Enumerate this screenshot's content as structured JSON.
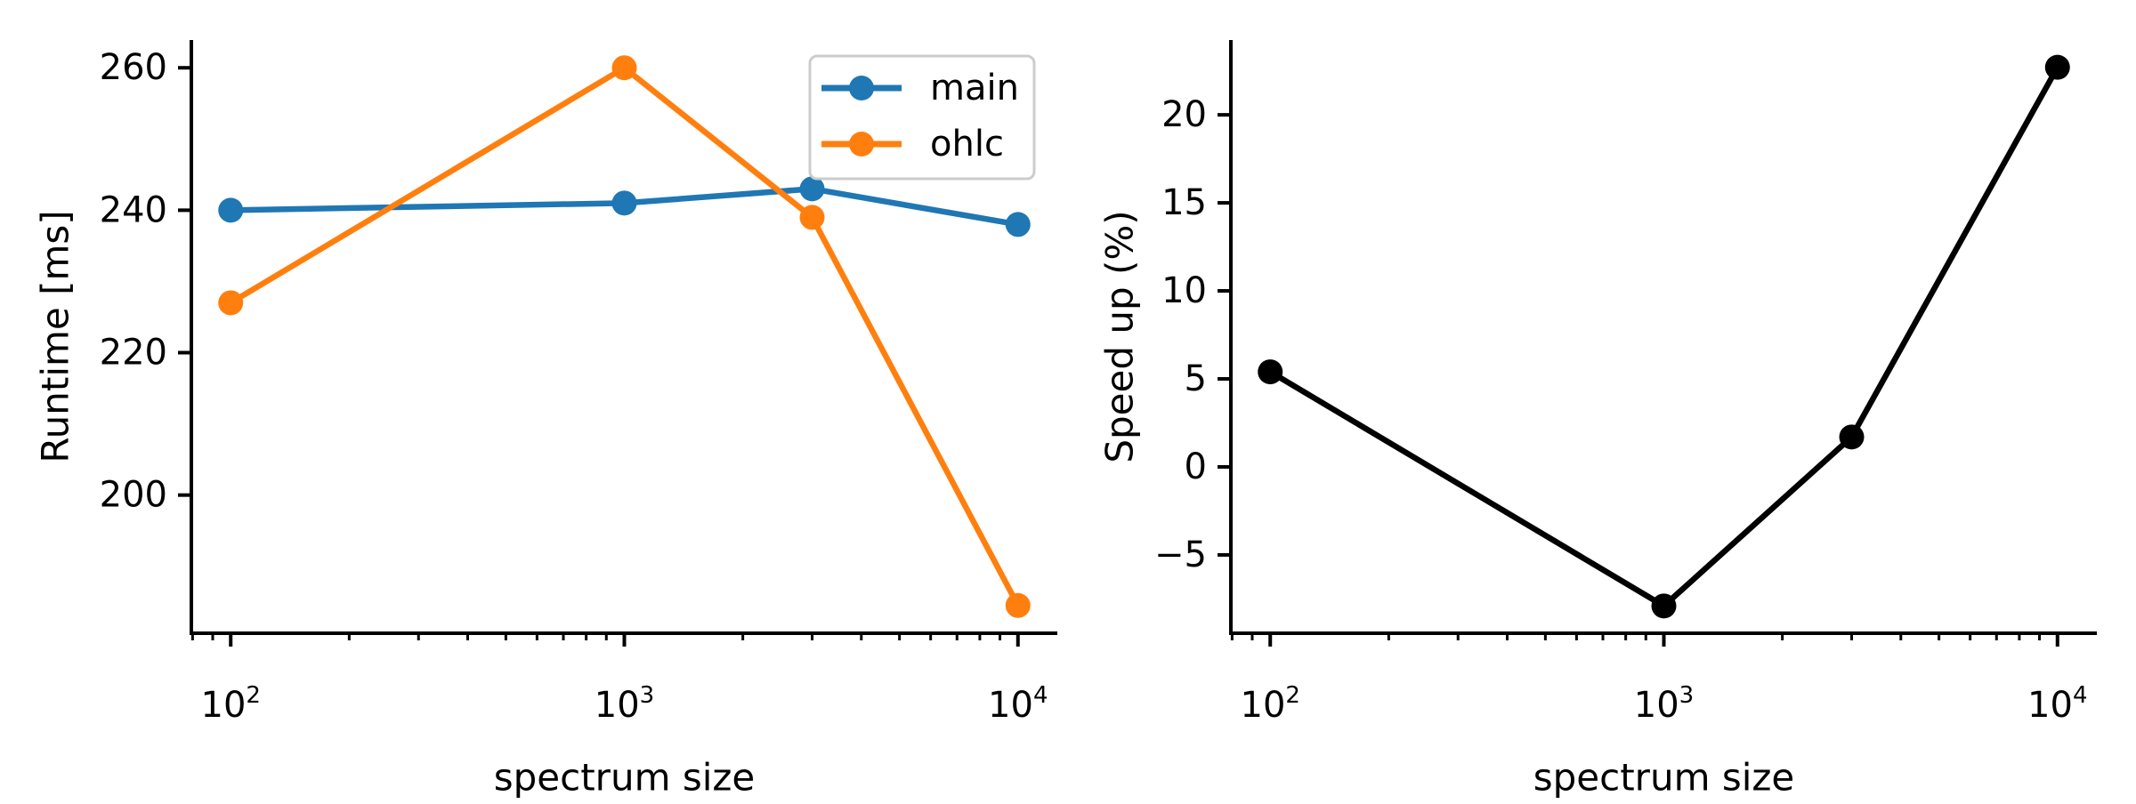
{
  "figure": {
    "background": "#ffffff"
  },
  "chart_data": [
    {
      "id": "runtime",
      "type": "line",
      "title": "",
      "xlabel": "spectrum size",
      "ylabel": "Runtime [ms]",
      "x_scale": "log",
      "grid": false,
      "x": [
        100,
        1000,
        3000,
        10000
      ],
      "xlim": [
        79.43,
        12589.25
      ],
      "ylim": [
        180.6,
        263.9
      ],
      "x_ticks": [
        {
          "v": 100,
          "base": "10",
          "exp": "2"
        },
        {
          "v": 1000,
          "base": "10",
          "exp": "3"
        },
        {
          "v": 10000,
          "base": "10",
          "exp": "4"
        }
      ],
      "y_ticks": [
        {
          "v": 200,
          "label": "200"
        },
        {
          "v": 220,
          "label": "220"
        },
        {
          "v": 240,
          "label": "240"
        },
        {
          "v": 260,
          "label": "260"
        }
      ],
      "series": [
        {
          "name": "main",
          "color": "#1f77b4",
          "values": [
            240,
            241,
            243,
            238
          ]
        },
        {
          "name": "ohlc",
          "color": "#ff7f0e",
          "values": [
            227,
            260,
            239,
            184.5
          ]
        }
      ],
      "legend": {
        "visible": true,
        "position": "upper right",
        "entries": [
          "main",
          "ohlc"
        ]
      }
    },
    {
      "id": "speedup",
      "type": "line",
      "title": "",
      "xlabel": "spectrum size",
      "ylabel": "Speed up (%)",
      "x_scale": "log",
      "grid": false,
      "x": [
        100,
        1000,
        3000,
        10000
      ],
      "xlim": [
        79.43,
        12589.25
      ],
      "ylim": [
        -9.45,
        24.25
      ],
      "x_ticks": [
        {
          "v": 100,
          "base": "10",
          "exp": "2"
        },
        {
          "v": 1000,
          "base": "10",
          "exp": "3"
        },
        {
          "v": 10000,
          "base": "10",
          "exp": "4"
        }
      ],
      "y_ticks": [
        {
          "v": -5,
          "label": "−5"
        },
        {
          "v": 0,
          "label": "0"
        },
        {
          "v": 5,
          "label": "5"
        },
        {
          "v": 10,
          "label": "10"
        },
        {
          "v": 15,
          "label": "15"
        },
        {
          "v": 20,
          "label": "20"
        }
      ],
      "series": [
        {
          "name": "speed_up",
          "color": "#000000",
          "values": [
            5.4,
            -7.9,
            1.7,
            22.7
          ]
        }
      ],
      "legend": {
        "visible": false,
        "position": "",
        "entries": []
      }
    }
  ]
}
